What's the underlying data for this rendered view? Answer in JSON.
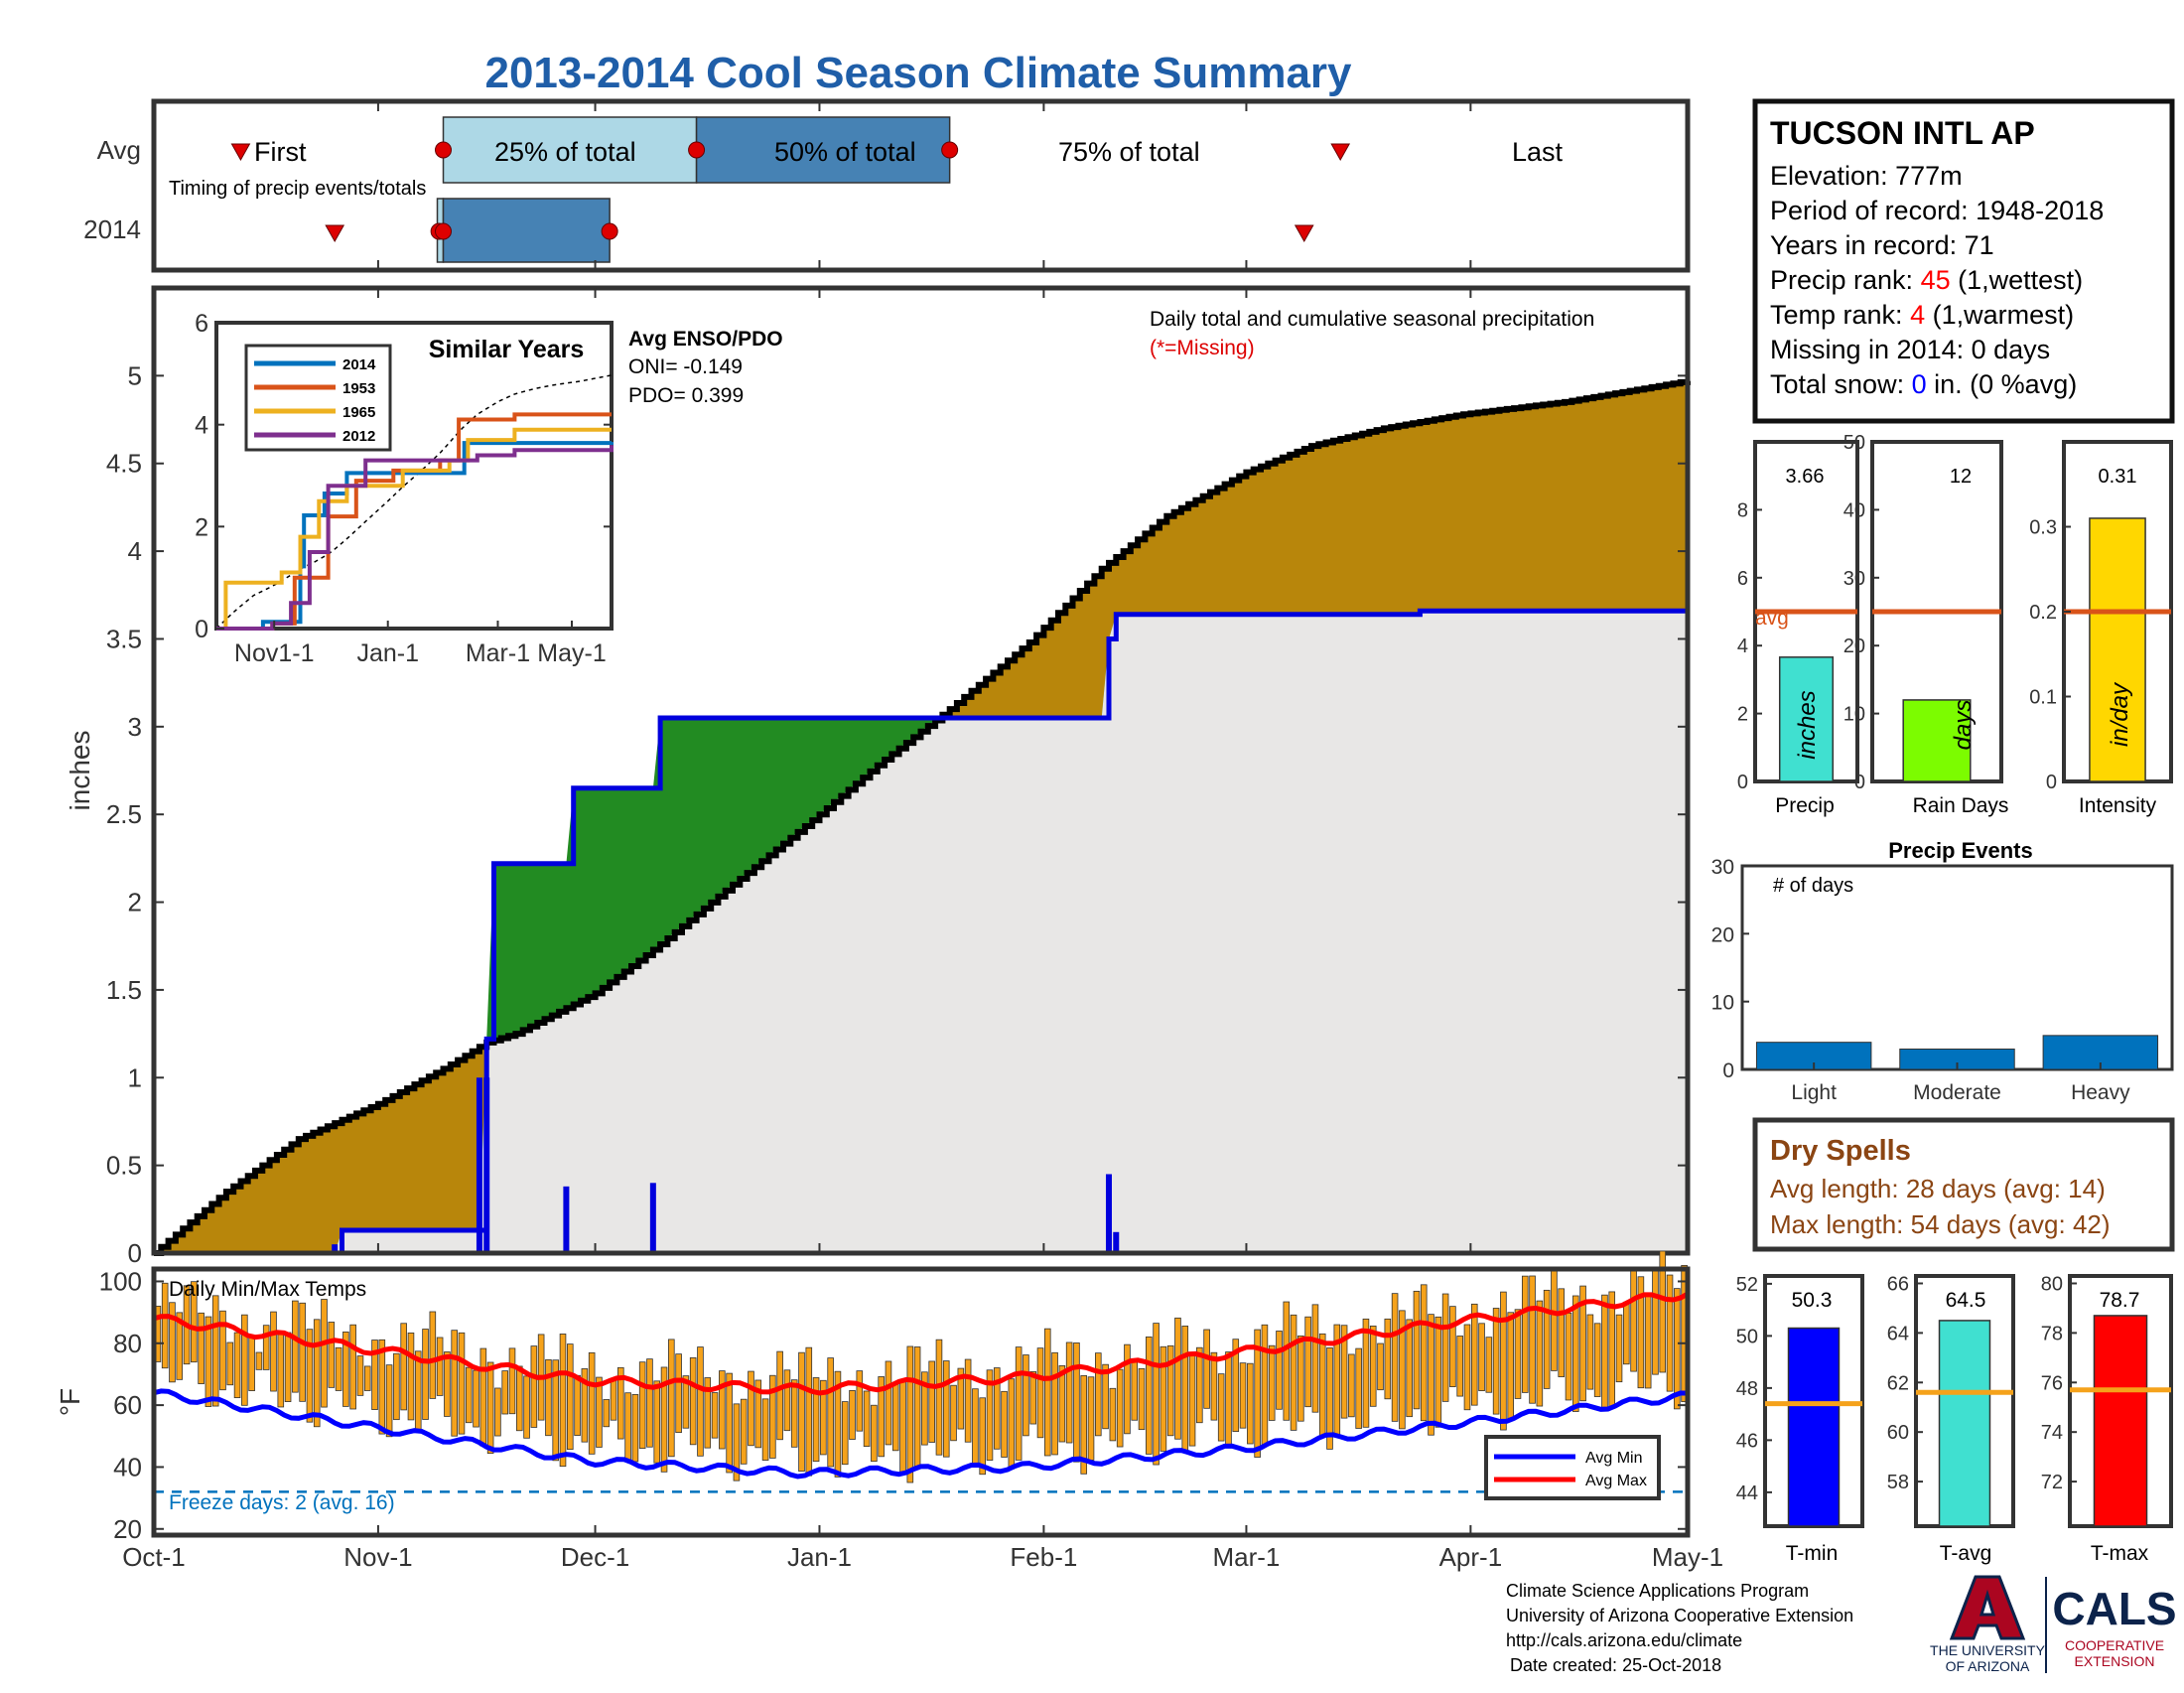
{
  "title": "2013-2014 Cool Season Climate Summary",
  "colors": {
    "title": "#1f5ea8",
    "below_avg_fill": "#b8860b",
    "above_avg_fill": "#228b22",
    "cum_area": "#e8e7e6",
    "cum_line": "#0000dd",
    "avg_line": "#000000",
    "timing_light": "#add8e6",
    "timing_dark": "#4682b4",
    "marker": "#dd0000",
    "avg_bar_line": "#d95319",
    "precip_bar": "#40e0d0",
    "raindays_bar": "#7cfc00",
    "intensity_bar": "#ffd700",
    "event_bar": "#0072bd",
    "temp_bar": "#f5a21b",
    "avg_min": "#0000ff",
    "avg_max": "#ff0000",
    "freeze_line": "#0072bd",
    "dry_spell_text": "#8b4513",
    "ua_red": "#ab0520",
    "ua_navy": "#0c234b"
  },
  "timing": {
    "row_labels": [
      "Avg",
      "2014"
    ],
    "subtitle": "Timing of precip events/totals",
    "avg_labels": [
      "First",
      "25% of total",
      "50% of total",
      "75% of total",
      "Last"
    ],
    "avg_days": {
      "first": 12,
      "p25": 40,
      "p50": 75,
      "p75": 110,
      "last": 164
    },
    "y2014_days": {
      "first": 25,
      "p25": 40,
      "p50": 40,
      "p75": 63,
      "last": 159
    }
  },
  "info_box": {
    "station": "TUCSON INTL AP",
    "elevation": "Elevation: 777m",
    "period": "Period of record: 1948-2018",
    "years": "Years in record: 71",
    "precip_rank_label": "Precip rank:",
    "precip_rank_value": "45",
    "precip_rank_note": "(1,wettest)",
    "temp_rank_label": "Temp rank:",
    "temp_rank_value": "4",
    "temp_rank_note": "(1,warmest)",
    "missing": "Missing in 2014: 0 days",
    "snow_label": "Total snow:",
    "snow_value": "0",
    "snow_note": "in. (0 %avg)"
  },
  "main_chart": {
    "ylabel": "inches",
    "annotation": "Daily total and cumulative seasonal precipitation",
    "missing_note": "(*=Missing)",
    "yticks": [
      "0",
      "0.5",
      "1",
      "1.5",
      "2",
      "2.5",
      "3",
      "3.5",
      "4",
      "4.5",
      "5"
    ],
    "xticks": [
      "Oct-1",
      "Nov-1",
      "Dec-1",
      "Jan-1",
      "Feb-1",
      "Mar-1",
      "Apr-1",
      "May-1"
    ]
  },
  "inset": {
    "title": "Similar Years",
    "enso_title": "Avg ENSO/PDO",
    "oni": "ONI= -0.149",
    "pdo": "PDO= 0.399",
    "legend": [
      "2014",
      "1953",
      "1965",
      "2012"
    ],
    "xticks": [
      "Nov1-1",
      "Jan-1",
      "Mar-1",
      "May-1"
    ],
    "yticks": [
      "0",
      "2",
      "4",
      "6"
    ]
  },
  "temp_chart": {
    "label": "Daily Min/Max Temps",
    "ylabel": "°F",
    "yticks": [
      "20",
      "40",
      "60",
      "80",
      "100"
    ],
    "freeze_text": "Freeze days: 2 (avg. 16)",
    "legend_min": "Avg Min",
    "legend_max": "Avg Max"
  },
  "stat_bars": {
    "precip": {
      "label": "Precip",
      "value": "3.66",
      "unit": "inches",
      "yticks": [
        "0",
        "2",
        "4",
        "6",
        "8"
      ],
      "avg": 5.0,
      "avg_label": "avg",
      "ymax": 10
    },
    "raindays": {
      "label": "Rain Days",
      "value": "12",
      "unit": "days",
      "yticks": [
        "0",
        "10",
        "20",
        "30",
        "40",
        "50"
      ],
      "avg": 25,
      "ymax": 50
    },
    "intensity": {
      "label": "Intensity",
      "value": "0.31",
      "unit": "in/day",
      "yticks": [
        "0",
        "0.1",
        "0.2",
        "0.3"
      ],
      "avg": 0.2,
      "ymax": 0.4
    }
  },
  "precip_events": {
    "title": "Precip Events",
    "sublabel": "# of days",
    "yticks": [
      "0",
      "10",
      "20",
      "30"
    ],
    "categories": [
      "Light",
      "Moderate",
      "Heavy"
    ],
    "values": [
      4,
      3,
      5
    ]
  },
  "dry_spells": {
    "title": "Dry Spells",
    "avg_length": "Avg length: 28 days (avg: 14)",
    "max_length": "Max length: 54 days (avg: 42)"
  },
  "temp_bars": {
    "tmin": {
      "label": "T-min",
      "value": "50.3",
      "yticks": [
        "44",
        "46",
        "48",
        "50",
        "52"
      ],
      "avg": 47.4
    },
    "tavg": {
      "label": "T-avg",
      "value": "64.5",
      "yticks": [
        "58",
        "60",
        "62",
        "64",
        "66"
      ],
      "avg": 61.6
    },
    "tmax": {
      "label": "T-max",
      "value": "78.7",
      "yticks": [
        "72",
        "74",
        "76",
        "78",
        "80"
      ],
      "avg": 75.7
    }
  },
  "footer": {
    "line1": "Climate Science Applications Program",
    "line2": "University of Arizona Cooperative Extension",
    "line3": "http://cals.arizona.edu/climate",
    "line4": "Date created: 25-Oct-2018",
    "ua_line1": "THE UNIVERSITY",
    "ua_line2": "OF ARIZONA",
    "cals": "CALS",
    "cals_sub1": "COOPERATIVE",
    "cals_sub2": "EXTENSION"
  },
  "chart_data": [
    {
      "type": "area",
      "title": "Daily total and cumulative seasonal precipitation",
      "ylabel": "inches",
      "ylim": [
        0,
        5.5
      ],
      "x_unit": "day of season (Oct-1 = 0)",
      "series": [
        {
          "name": "Average cumulative",
          "x": [
            0,
            10,
            20,
            31,
            40,
            46,
            50,
            61,
            70,
            80,
            92,
            100,
            110,
            121,
            131,
            140,
            151,
            160,
            170,
            181,
            195,
            212
          ],
          "values": [
            0,
            0.35,
            0.65,
            0.85,
            1.05,
            1.2,
            1.25,
            1.48,
            1.76,
            2.1,
            2.5,
            2.78,
            3.1,
            3.48,
            3.9,
            4.2,
            4.45,
            4.6,
            4.7,
            4.78,
            4.85,
            4.97
          ]
        },
        {
          "name": "2014 cumulative",
          "x": [
            0,
            25,
            26,
            45,
            46,
            47,
            57,
            58,
            69,
            70,
            105,
            131,
            132,
            133,
            175,
            212
          ],
          "values": [
            0,
            0,
            0.13,
            0.13,
            1.22,
            2.22,
            2.22,
            2.65,
            2.65,
            3.05,
            3.05,
            3.05,
            3.5,
            3.64,
            3.66,
            3.66
          ]
        },
        {
          "name": "2014 daily",
          "x": [
            25,
            45,
            46,
            57,
            69,
            132,
            133
          ],
          "values": [
            0.05,
            1.0,
            1.0,
            0.38,
            0.4,
            0.45,
            0.12
          ]
        }
      ]
    },
    {
      "type": "line",
      "title": "Similar Years",
      "xticks": [
        "Nov1-1",
        "Jan-1",
        "Mar-1",
        "May-1"
      ],
      "ylim": [
        0,
        6
      ],
      "series": [
        {
          "name": "2014",
          "x": [
            0,
            25,
            45,
            47,
            58,
            70,
            133,
            212
          ],
          "values": [
            0,
            0.13,
            1.22,
            2.22,
            2.65,
            3.05,
            3.64,
            3.66
          ]
        },
        {
          "name": "1953",
          "x": [
            0,
            30,
            42,
            60,
            75,
            95,
            120,
            130,
            160,
            212
          ],
          "values": [
            0,
            0.1,
            1.0,
            2.2,
            2.9,
            3.1,
            3.3,
            4.1,
            4.2,
            4.2
          ]
        },
        {
          "name": "1965",
          "x": [
            0,
            5,
            35,
            45,
            55,
            70,
            100,
            125,
            135,
            160,
            212
          ],
          "values": [
            0,
            0.9,
            1.1,
            1.8,
            2.5,
            2.8,
            3.1,
            3.3,
            3.7,
            3.9,
            3.9
          ]
        },
        {
          "name": "2012",
          "x": [
            0,
            30,
            40,
            50,
            60,
            80,
            110,
            140,
            160,
            212
          ],
          "values": [
            0,
            0.1,
            0.5,
            1.5,
            2.8,
            3.3,
            3.3,
            3.4,
            3.5,
            3.6
          ]
        }
      ]
    },
    {
      "type": "bar",
      "title": "Daily Min/Max Temps",
      "ylim": [
        18,
        104
      ],
      "series": [
        {
          "name": "Avg Min",
          "x": [
            0,
            30,
            60,
            90,
            120,
            150,
            180,
            212
          ],
          "values": [
            64,
            53,
            42,
            38,
            40,
            46,
            54,
            63
          ]
        },
        {
          "name": "Avg Max",
          "x": [
            0,
            30,
            60,
            90,
            120,
            150,
            180,
            212
          ],
          "values": [
            88,
            78,
            68,
            65,
            69,
            77,
            87,
            96
          ]
        }
      ]
    },
    {
      "type": "bar",
      "title": "Precip Events",
      "categories": [
        "Light",
        "Moderate",
        "Heavy"
      ],
      "values": [
        4,
        3,
        5
      ],
      "ylim": [
        0,
        30
      ]
    }
  ]
}
